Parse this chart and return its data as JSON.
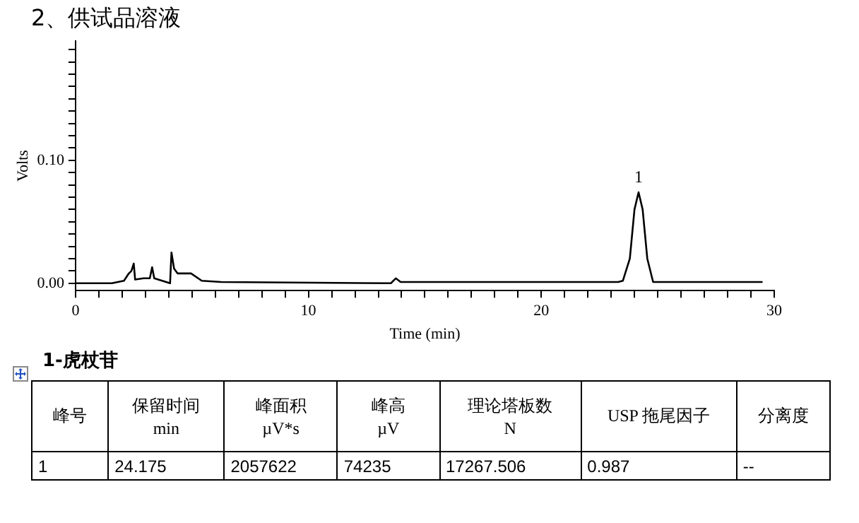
{
  "chart_data": {
    "type": "line",
    "title": "2、供试品溶液",
    "xlabel": "Time (min)",
    "ylabel": "Volts",
    "x": [
      0,
      1.56,
      2.08,
      2.29,
      2.4,
      2.5,
      2.56,
      2.92,
      3.19,
      3.29,
      3.38,
      4.06,
      4.12,
      4.23,
      4.38,
      4.96,
      5.42,
      6.25,
      13.54,
      13.75,
      13.96,
      23.3,
      23.5,
      23.8,
      24.0,
      24.175,
      24.35,
      24.55,
      24.8,
      29.5
    ],
    "series": [
      {
        "color": "#000000",
        "values": [
          0,
          0,
          0.002,
          0.008,
          0.01,
          0.016,
          0.003,
          0.004,
          0.004,
          0.013,
          0.004,
          0,
          0.025,
          0.012,
          0.008,
          0.008,
          0.002,
          0.001,
          0,
          0.004,
          0.001,
          0.001,
          0.002,
          0.02,
          0.06,
          0.074,
          0.06,
          0.02,
          0.001,
          0.001
        ]
      }
    ],
    "xlim": [
      0,
      30
    ],
    "xticks": [
      0,
      {
        "value": 1,
        "label": null
      },
      {
        "value": 2,
        "label": null
      },
      {
        "value": 3,
        "label": null
      },
      {
        "value": 4,
        "label": null
      },
      {
        "value": 5,
        "label": null
      },
      {
        "value": 6,
        "label": null
      },
      {
        "value": 7,
        "label": null
      },
      {
        "value": 8,
        "label": null
      },
      {
        "value": 9,
        "label": null
      },
      10,
      {
        "value": 11,
        "label": null
      },
      {
        "value": 12,
        "label": null
      },
      {
        "value": 13,
        "label": null
      },
      {
        "value": 14,
        "label": null
      },
      {
        "value": 15,
        "label": null
      },
      {
        "value": 16,
        "label": null
      },
      {
        "value": 17,
        "label": null
      },
      {
        "value": 18,
        "label": null
      },
      {
        "value": 19,
        "label": null
      },
      20,
      {
        "value": 21,
        "label": null
      },
      {
        "value": 22,
        "label": null
      },
      {
        "value": 23,
        "label": null
      },
      {
        "value": 24,
        "label": null
      },
      {
        "value": 25,
        "label": null
      },
      {
        "value": 26,
        "label": null
      },
      {
        "value": 27,
        "label": null
      },
      {
        "value": 28,
        "label": null
      },
      {
        "value": 29,
        "label": null
      },
      30
    ],
    "ylim": [
      -0.006,
      0.197
    ],
    "yticks": [
      {
        "value": 0,
        "label": "0.00"
      },
      {
        "value": 0.01,
        "label": null
      },
      {
        "value": 0.02,
        "label": null
      },
      {
        "value": 0.03,
        "label": null
      },
      {
        "value": 0.04,
        "label": null
      },
      {
        "value": 0.05,
        "label": null
      },
      {
        "value": 0.06,
        "label": null
      },
      {
        "value": 0.07,
        "label": null
      },
      {
        "value": 0.08,
        "label": null
      },
      {
        "value": 0.09,
        "label": null
      },
      {
        "value": 0.1,
        "label": "0.10"
      },
      {
        "value": 0.11,
        "label": null
      },
      {
        "value": 0.12,
        "label": null
      },
      {
        "value": 0.13,
        "label": null
      },
      {
        "value": 0.14,
        "label": null
      },
      {
        "value": 0.15,
        "label": null
      },
      {
        "value": 0.16,
        "label": null
      },
      {
        "value": 0.17,
        "label": null
      },
      {
        "value": 0.18,
        "label": null
      },
      {
        "value": 0.19,
        "label": null
      }
    ],
    "grid": false,
    "legend": false,
    "marker": "none",
    "line_style": "solid",
    "annotations": [
      {
        "text": "1",
        "x": 24.175,
        "y": 0.0742
      },
      "1-虎杖苷",
      "峰号",
      "保留时间\nmin",
      "峰面积\nµV*s",
      "峰高\nµV",
      "理论塔板数\nN",
      "USP 拖尾因子",
      "分离度",
      "1",
      "24.175",
      "2057622",
      "74235",
      "17267.506",
      "0.987",
      "--"
    ]
  }
}
